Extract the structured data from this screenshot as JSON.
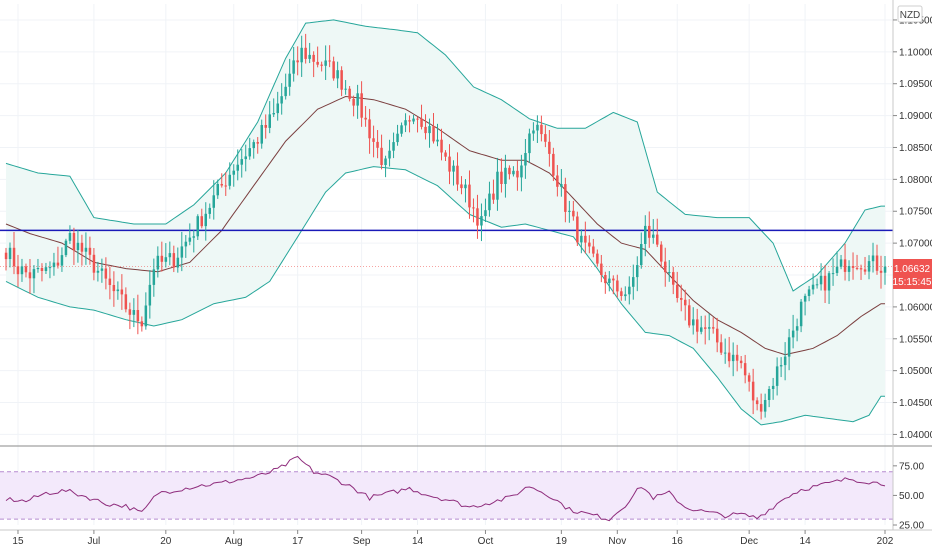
{
  "colors": {
    "up": "#26a69a",
    "down": "#ef5350",
    "band_line": "#26a69a",
    "band_fill": "#eef8f6",
    "basis": "#7b3f3f",
    "hline": "#1a1ab8",
    "rsi_line": "#8e2c7c",
    "rsi_band": "#f3e9fb",
    "price_badge": "#ef5350"
  },
  "currency_label": "NZD",
  "price_badge": {
    "price": "1.06632",
    "countdown": "15:15:45"
  },
  "chart_data": [
    {
      "type": "candlestick",
      "title": "",
      "x_tick_labels": [
        "15",
        "Jul",
        "20",
        "Aug",
        "17",
        "Sep",
        "14",
        "Oct",
        "19",
        "Nov",
        "16",
        "Dec",
        "14",
        "202"
      ],
      "x_tick_index": [
        3,
        22,
        40,
        57,
        73,
        89,
        103,
        120,
        139,
        153,
        168,
        186,
        200,
        220
      ],
      "y_tick_labels": [
        "1.10500",
        "1.10000",
        "1.09500",
        "1.09000",
        "1.08500",
        "1.08000",
        "1.07500",
        "1.07000",
        "1.06500",
        "1.06000",
        "1.05500",
        "1.05000",
        "1.04500",
        "1.04000"
      ],
      "ylim": [
        1.0385,
        1.1075
      ],
      "x_count": 221,
      "horizontal_line": 1.072,
      "last_price": 1.06632,
      "close_anchors": [
        [
          0,
          1.069
        ],
        [
          3,
          1.066
        ],
        [
          6,
          1.065
        ],
        [
          12,
          1.066
        ],
        [
          16,
          1.071
        ],
        [
          22,
          1.0665
        ],
        [
          26,
          1.063
        ],
        [
          32,
          1.0585
        ],
        [
          34,
          1.058
        ],
        [
          37,
          1.0665
        ],
        [
          42,
          1.0675
        ],
        [
          47,
          1.072
        ],
        [
          53,
          1.078
        ],
        [
          57,
          1.082
        ],
        [
          62,
          1.0855
        ],
        [
          67,
          1.09
        ],
        [
          71,
          1.096
        ],
        [
          74,
          1.1
        ],
        [
          78,
          1.0985
        ],
        [
          82,
          1.097
        ],
        [
          88,
          1.092
        ],
        [
          92,
          1.086
        ],
        [
          95,
          1.082
        ],
        [
          98,
          1.086
        ],
        [
          102,
          1.091
        ],
        [
          106,
          1.088
        ],
        [
          110,
          1.083
        ],
        [
          115,
          1.078
        ],
        [
          119,
          1.073
        ],
        [
          123,
          1.08
        ],
        [
          128,
          1.081
        ],
        [
          132,
          1.089
        ],
        [
          136,
          1.084
        ],
        [
          140,
          1.076
        ],
        [
          144,
          1.07
        ],
        [
          148,
          1.066
        ],
        [
          152,
          1.063
        ],
        [
          156,
          1.062
        ],
        [
          160,
          1.072
        ],
        [
          163,
          1.07
        ],
        [
          167,
          1.062
        ],
        [
          171,
          1.058
        ],
        [
          176,
          1.056
        ],
        [
          180,
          1.053
        ],
        [
          184,
          1.051
        ],
        [
          188,
          1.044
        ],
        [
          191,
          1.047
        ],
        [
          195,
          1.053
        ],
        [
          199,
          1.06
        ],
        [
          203,
          1.063
        ],
        [
          207,
          1.065
        ],
        [
          211,
          1.0675
        ],
        [
          215,
          1.067
        ],
        [
          220,
          1.06632
        ]
      ],
      "bollinger": {
        "upper": [
          [
            0,
            1.0825
          ],
          [
            8,
            1.081
          ],
          [
            16,
            1.0805
          ],
          [
            22,
            1.074
          ],
          [
            32,
            1.073
          ],
          [
            40,
            1.073
          ],
          [
            47,
            1.076
          ],
          [
            55,
            1.081
          ],
          [
            63,
            1.089
          ],
          [
            70,
            1.099
          ],
          [
            75,
            1.1045
          ],
          [
            82,
            1.105
          ],
          [
            90,
            1.104
          ],
          [
            97,
            1.1035
          ],
          [
            103,
            1.103
          ],
          [
            110,
            1.0995
          ],
          [
            117,
            1.0945
          ],
          [
            124,
            1.0925
          ],
          [
            131,
            1.0895
          ],
          [
            138,
            1.088
          ],
          [
            145,
            1.088
          ],
          [
            152,
            1.0905
          ],
          [
            158,
            1.089
          ],
          [
            163,
            1.078
          ],
          [
            170,
            1.0745
          ],
          [
            178,
            1.074
          ],
          [
            186,
            1.074
          ],
          [
            192,
            1.07
          ],
          [
            197,
            1.0625
          ],
          [
            203,
            1.065
          ],
          [
            210,
            1.07
          ],
          [
            215,
            1.0752
          ],
          [
            219,
            1.0758
          ]
        ],
        "basis": [
          [
            0,
            1.073
          ],
          [
            6,
            1.0715
          ],
          [
            14,
            1.07
          ],
          [
            22,
            1.067
          ],
          [
            30,
            1.066
          ],
          [
            38,
            1.0655
          ],
          [
            46,
            1.067
          ],
          [
            54,
            1.072
          ],
          [
            62,
            1.079
          ],
          [
            70,
            1.086
          ],
          [
            78,
            1.091
          ],
          [
            85,
            1.093
          ],
          [
            92,
            1.0925
          ],
          [
            100,
            1.091
          ],
          [
            108,
            1.088
          ],
          [
            116,
            1.0845
          ],
          [
            124,
            1.083
          ],
          [
            130,
            1.083
          ],
          [
            136,
            1.081
          ],
          [
            142,
            1.077
          ],
          [
            148,
            1.073
          ],
          [
            154,
            1.07
          ],
          [
            160,
            1.069
          ],
          [
            166,
            1.065
          ],
          [
            172,
            1.061
          ],
          [
            178,
            1.058
          ],
          [
            184,
            1.056
          ],
          [
            190,
            1.0535
          ],
          [
            195,
            1.0525
          ],
          [
            202,
            1.0535
          ],
          [
            208,
            1.0555
          ],
          [
            214,
            1.0585
          ],
          [
            219,
            1.0605
          ]
        ],
        "lower": [
          [
            0,
            1.064
          ],
          [
            8,
            1.0615
          ],
          [
            16,
            1.06
          ],
          [
            22,
            1.0595
          ],
          [
            30,
            1.058
          ],
          [
            37,
            1.057
          ],
          [
            44,
            1.058
          ],
          [
            52,
            1.0605
          ],
          [
            60,
            1.0615
          ],
          [
            66,
            1.064
          ],
          [
            73,
            1.071
          ],
          [
            80,
            1.078
          ],
          [
            85,
            1.081
          ],
          [
            92,
            1.082
          ],
          [
            100,
            1.0815
          ],
          [
            108,
            1.079
          ],
          [
            116,
            1.0745
          ],
          [
            124,
            1.0725
          ],
          [
            130,
            1.073
          ],
          [
            136,
            1.072
          ],
          [
            142,
            1.071
          ],
          [
            148,
            1.066
          ],
          [
            154,
            1.0605
          ],
          [
            160,
            1.056
          ],
          [
            166,
            1.0555
          ],
          [
            172,
            1.0535
          ],
          [
            178,
            1.049
          ],
          [
            184,
            1.044
          ],
          [
            189,
            1.0415
          ],
          [
            194,
            1.042
          ],
          [
            200,
            1.043
          ],
          [
            206,
            1.0425
          ],
          [
            212,
            1.042
          ],
          [
            216,
            1.043
          ],
          [
            219,
            1.046
          ]
        ]
      }
    },
    {
      "type": "line",
      "title": "",
      "y_tick_labels": [
        "75.00",
        "50.00",
        "25.00"
      ],
      "ylim": [
        25,
        85
      ],
      "band": [
        30,
        70
      ],
      "rsi_anchors": [
        [
          0,
          47
        ],
        [
          5,
          45
        ],
        [
          10,
          52
        ],
        [
          15,
          54
        ],
        [
          20,
          49
        ],
        [
          25,
          43
        ],
        [
          30,
          41
        ],
        [
          34,
          35
        ],
        [
          38,
          52
        ],
        [
          43,
          55
        ],
        [
          48,
          58
        ],
        [
          53,
          60
        ],
        [
          58,
          63
        ],
        [
          63,
          66
        ],
        [
          68,
          72
        ],
        [
          73,
          82
        ],
        [
          77,
          70
        ],
        [
          81,
          66
        ],
        [
          86,
          58
        ],
        [
          91,
          48
        ],
        [
          96,
          52
        ],
        [
          101,
          56
        ],
        [
          106,
          50
        ],
        [
          111,
          46
        ],
        [
          116,
          40
        ],
        [
          121,
          44
        ],
        [
          126,
          48
        ],
        [
          131,
          58
        ],
        [
          136,
          50
        ],
        [
          141,
          38
        ],
        [
          146,
          34
        ],
        [
          151,
          30
        ],
        [
          155,
          42
        ],
        [
          159,
          58
        ],
        [
          162,
          48
        ],
        [
          166,
          52
        ],
        [
          170,
          40
        ],
        [
          175,
          36
        ],
        [
          180,
          33
        ],
        [
          184,
          34
        ],
        [
          188,
          31
        ],
        [
          191,
          38
        ],
        [
          195,
          48
        ],
        [
          199,
          55
        ],
        [
          203,
          58
        ],
        [
          207,
          61
        ],
        [
          211,
          64
        ],
        [
          215,
          62
        ],
        [
          219,
          60
        ]
      ]
    }
  ]
}
